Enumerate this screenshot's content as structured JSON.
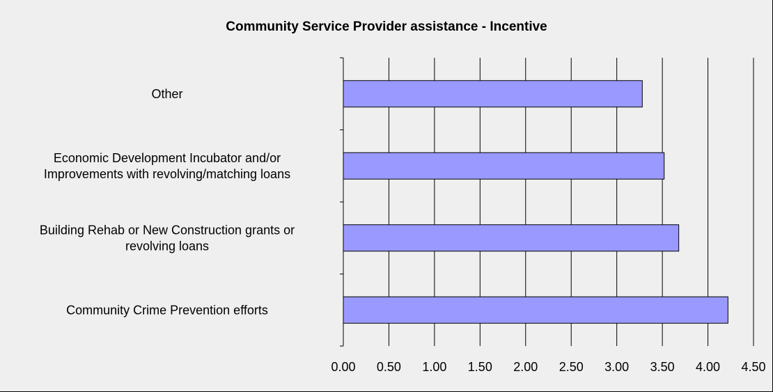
{
  "chart_data": {
    "type": "bar",
    "orientation": "horizontal",
    "title": "Community Service Provider assistance - Incentive",
    "categories": [
      "Community Crime Prevention efforts",
      "Building Rehab or New Construction grants or revolving loans",
      "Economic Development Incubator and/or Improvements with revolving/matching loans",
      "Other"
    ],
    "category_label_lines": [
      [
        "Community Crime Prevention efforts"
      ],
      [
        "Building Rehab or New Construction grants or",
        "revolving loans"
      ],
      [
        "Economic Development Incubator and/or",
        "Improvements with revolving/matching loans"
      ],
      [
        "Other"
      ]
    ],
    "values": [
      4.22,
      3.68,
      3.52,
      3.28
    ],
    "xlim": [
      0,
      4.5
    ],
    "x_ticks": [
      "0.00",
      "0.50",
      "1.00",
      "1.50",
      "2.00",
      "2.50",
      "3.00",
      "3.50",
      "4.00",
      "4.50"
    ],
    "xlabel": "",
    "ylabel": "",
    "grid": "vertical",
    "legend": "none",
    "colors": {
      "bar_fill": "#9999ff",
      "bar_stroke": "#000000",
      "background": "#efefef",
      "gridline": "#000000"
    }
  }
}
